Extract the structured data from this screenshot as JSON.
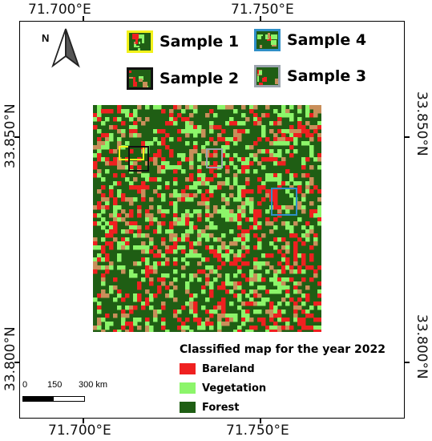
{
  "map": {
    "coords": {
      "top": [
        "71.700°E",
        "71.750°E"
      ],
      "bottom": [
        "71.700°E",
        "71.750°E"
      ],
      "left": [
        "33.850°N",
        "33.800°N"
      ],
      "right": [
        "33.850°N",
        "33.800°N"
      ]
    },
    "north_label": "N",
    "samples": [
      {
        "label": "Sample 1",
        "border_color": "#f2f21a"
      },
      {
        "label": "Sample 2",
        "border_color": "#111111"
      },
      {
        "label": "Sample 4",
        "border_color": "#2f8fc8"
      },
      {
        "label": "Sample 3",
        "border_color": "#9aa3ad"
      }
    ],
    "legend": {
      "title": "Classified map for the year 2022",
      "items": [
        {
          "label": "Bareland",
          "color": "#ef2020"
        },
        {
          "label": "Vegetation",
          "color": "#8cf56a"
        },
        {
          "label": "Forest",
          "color": "#1f5e14"
        }
      ]
    },
    "scale": {
      "labels": [
        "0",
        "150",
        "300 km"
      ]
    },
    "colors": {
      "forest": "#1f5e14",
      "vegetation": "#8cf56a",
      "bareland": "#ef2020",
      "mixed": "#c98f5a"
    }
  }
}
